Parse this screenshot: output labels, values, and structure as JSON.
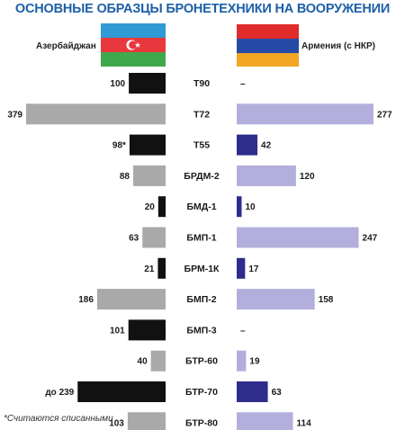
{
  "title": "ОСНОВНЫЕ ОБРАЗЦЫ БРОНЕТЕХНИКИ НА ВООРУЖЕНИИ",
  "footnote": "*Считаются списанными",
  "countries": {
    "left": {
      "name": "Азербайджан",
      "flag": "azerbaijan-flag"
    },
    "right": {
      "name": "Армения (с НКР)",
      "flag": "armenia-flag"
    }
  },
  "colors": {
    "left_highlight": "#111111",
    "left_normal": "#a9a9a9",
    "right_highlight": "#2e2c8c",
    "right_normal": "#b3afdc",
    "title": "#1c5fa8"
  },
  "chart_data": {
    "type": "bar",
    "orientation": "horizontal-back-to-back",
    "categories": [
      "Т90",
      "Т72",
      "Т55",
      "БРДМ-2",
      "БМД-1",
      "БМП-1",
      "БРМ-1К",
      "БМП-2",
      "БМП-3",
      "БТР-60",
      "БТР-70",
      "БТР-80"
    ],
    "series": [
      {
        "name": "Азербайджан",
        "values": [
          100,
          379,
          98,
          88,
          20,
          63,
          21,
          186,
          101,
          40,
          239,
          103
        ],
        "labels": [
          "100",
          "379",
          "98*",
          "88",
          "20",
          "63",
          "21",
          "186",
          "101",
          "40",
          "до 239",
          "103"
        ],
        "highlight": [
          true,
          false,
          true,
          false,
          true,
          false,
          true,
          false,
          true,
          false,
          true,
          false
        ]
      },
      {
        "name": "Армения (с НКР)",
        "values": [
          0,
          277,
          42,
          120,
          10,
          247,
          17,
          158,
          0,
          19,
          63,
          114
        ],
        "labels": [
          "–",
          "277",
          "42",
          "120",
          "10",
          "247",
          "17",
          "158",
          "–",
          "19",
          "63",
          "114"
        ],
        "highlight": [
          true,
          false,
          true,
          false,
          true,
          false,
          true,
          false,
          true,
          false,
          true,
          false
        ]
      }
    ],
    "xlim": [
      0,
      379
    ]
  }
}
